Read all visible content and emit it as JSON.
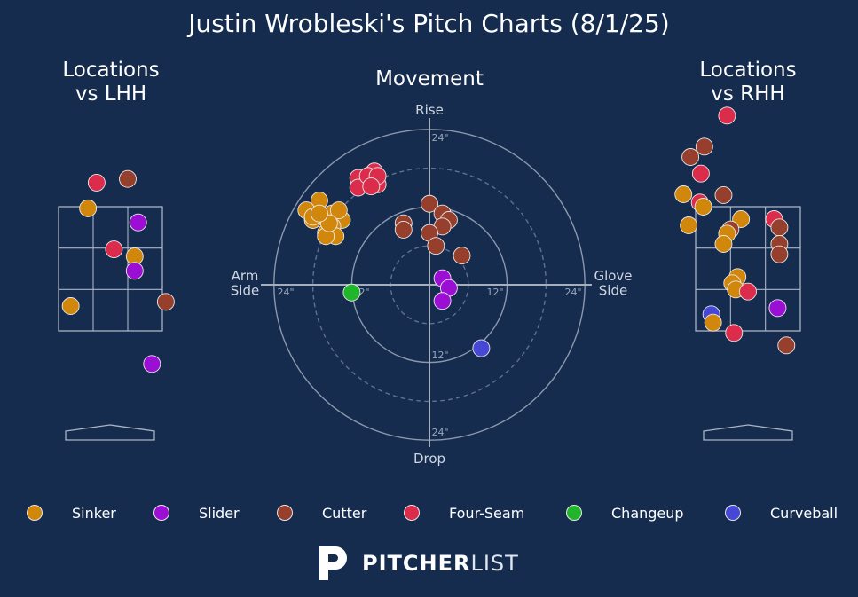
{
  "title": "Justin Wrobleski's Pitch Charts (8/1/25)",
  "panels": {
    "lhh": "Locations\nvs LHH",
    "movement": "Movement",
    "rhh": "Locations\nvs RHH"
  },
  "colors": {
    "background": "#152c4f",
    "Sinker": "#d1870b",
    "Slider": "#9b0fd4",
    "Cutter": "#963f2c",
    "Four-Seam": "#db2d4b",
    "Changeup": "#21b52c",
    "Curveball": "#4647d4"
  },
  "legend": [
    "Sinker",
    "Slider",
    "Cutter",
    "Four-Seam",
    "Changeup",
    "Curveball"
  ],
  "brand": {
    "bold": "PITCHER",
    "light": "LIST"
  },
  "chart_data": [
    {
      "type": "scatter",
      "name_key": "movement",
      "xlabel_left": "Arm\nSide",
      "xlabel_right": "Glove\nSide",
      "ylabel_top": "Rise",
      "ylabel_bottom": "Drop",
      "ring_labels": [
        "12\"",
        "24\""
      ],
      "units": "inches (x: arm side negative, glove side positive; y: rise positive)",
      "points": [
        {
          "pitch": "Sinker",
          "x": -17,
          "y": 13
        },
        {
          "pitch": "Sinker",
          "x": -18,
          "y": 10
        },
        {
          "pitch": "Sinker",
          "x": -19,
          "y": 11.5
        },
        {
          "pitch": "Sinker",
          "x": -16,
          "y": 10.5
        },
        {
          "pitch": "Sinker",
          "x": -15,
          "y": 11
        },
        {
          "pitch": "Sinker",
          "x": -13.5,
          "y": 10
        },
        {
          "pitch": "Sinker",
          "x": -14,
          "y": 11.5
        },
        {
          "pitch": "Sinker",
          "x": -16,
          "y": 8
        },
        {
          "pitch": "Sinker",
          "x": -15,
          "y": 9
        },
        {
          "pitch": "Sinker",
          "x": -14.5,
          "y": 7.5
        },
        {
          "pitch": "Sinker",
          "x": -16,
          "y": 7.5
        },
        {
          "pitch": "Sinker",
          "x": -18,
          "y": 10.5
        },
        {
          "pitch": "Sinker",
          "x": -15.5,
          "y": 9.5
        },
        {
          "pitch": "Sinker",
          "x": -17,
          "y": 11
        },
        {
          "pitch": "Four-Seam",
          "x": -11,
          "y": 16.5
        },
        {
          "pitch": "Four-Seam",
          "x": -8.5,
          "y": 17.5
        },
        {
          "pitch": "Four-Seam",
          "x": -9,
          "y": 16
        },
        {
          "pitch": "Four-Seam",
          "x": -8,
          "y": 15.5
        },
        {
          "pitch": "Four-Seam",
          "x": -11,
          "y": 15
        },
        {
          "pitch": "Four-Seam",
          "x": -9.5,
          "y": 16.8
        },
        {
          "pitch": "Four-Seam",
          "x": -8,
          "y": 16.8
        },
        {
          "pitch": "Four-Seam",
          "x": -9,
          "y": 15.2
        },
        {
          "pitch": "Cutter",
          "x": 0,
          "y": 12.5
        },
        {
          "pitch": "Cutter",
          "x": 2,
          "y": 11
        },
        {
          "pitch": "Cutter",
          "x": -4,
          "y": 9.5
        },
        {
          "pitch": "Cutter",
          "x": 3,
          "y": 10
        },
        {
          "pitch": "Cutter",
          "x": 2,
          "y": 9
        },
        {
          "pitch": "Cutter",
          "x": -4,
          "y": 8.5
        },
        {
          "pitch": "Cutter",
          "x": 0,
          "y": 8
        },
        {
          "pitch": "Cutter",
          "x": 1,
          "y": 6
        },
        {
          "pitch": "Cutter",
          "x": 5,
          "y": 4.5
        },
        {
          "pitch": "Slider",
          "x": 2,
          "y": 1
        },
        {
          "pitch": "Slider",
          "x": 3,
          "y": -0.5
        },
        {
          "pitch": "Slider",
          "x": 2,
          "y": -2.5
        },
        {
          "pitch": "Changeup",
          "x": -12,
          "y": -1.2
        },
        {
          "pitch": "Curveball",
          "x": 8,
          "y": -9.8
        }
      ]
    },
    {
      "type": "scatter",
      "name_key": "lhh",
      "units": "strike zone grid (x: 0 left edge to 3 right edge, y: 0 top to 3 bottom)",
      "points": [
        {
          "pitch": "Four-Seam",
          "x": 1.1,
          "y": -0.58
        },
        {
          "pitch": "Cutter",
          "x": 2,
          "y": -0.67
        },
        {
          "pitch": "Sinker",
          "x": 0.85,
          "y": 0.04
        },
        {
          "pitch": "Slider",
          "x": 2.3,
          "y": 0.38
        },
        {
          "pitch": "Four-Seam",
          "x": 1.6,
          "y": 1.03
        },
        {
          "pitch": "Sinker",
          "x": 2.2,
          "y": 1.2
        },
        {
          "pitch": "Slider",
          "x": 2.2,
          "y": 1.55
        },
        {
          "pitch": "Sinker",
          "x": 0.35,
          "y": 2.4
        },
        {
          "pitch": "Cutter",
          "x": 3.1,
          "y": 2.3
        },
        {
          "pitch": "Slider",
          "x": 2.7,
          "y": 3.8
        }
      ]
    },
    {
      "type": "scatter",
      "name_key": "rhh",
      "units": "strike zone grid (x: 0 left edge to 3 right edge, y: 0 top to 3 bottom)",
      "points": [
        {
          "pitch": "Four-Seam",
          "x": 0.9,
          "y": -2.2
        },
        {
          "pitch": "Cutter",
          "x": 0.25,
          "y": -1.45
        },
        {
          "pitch": "Cutter",
          "x": -0.15,
          "y": -1.2
        },
        {
          "pitch": "Four-Seam",
          "x": 0.15,
          "y": -0.8
        },
        {
          "pitch": "Sinker",
          "x": -0.35,
          "y": -0.3
        },
        {
          "pitch": "Cutter",
          "x": 0.8,
          "y": -0.28
        },
        {
          "pitch": "Four-Seam",
          "x": 0.12,
          "y": -0.1
        },
        {
          "pitch": "Sinker",
          "x": 0.22,
          "y": 0
        },
        {
          "pitch": "Sinker",
          "x": 1.3,
          "y": 0.3
        },
        {
          "pitch": "Sinker",
          "x": -0.2,
          "y": 0.45
        },
        {
          "pitch": "Cutter",
          "x": 1,
          "y": 0.55
        },
        {
          "pitch": "Sinker",
          "x": 0.9,
          "y": 0.65
        },
        {
          "pitch": "Sinker",
          "x": 0.8,
          "y": 0.9
        },
        {
          "pitch": "Four-Seam",
          "x": 2.25,
          "y": 0.3
        },
        {
          "pitch": "Cutter",
          "x": 2.4,
          "y": 0.5
        },
        {
          "pitch": "Cutter",
          "x": 2.4,
          "y": 0.9
        },
        {
          "pitch": "Cutter",
          "x": 2.4,
          "y": 1.15
        },
        {
          "pitch": "Sinker",
          "x": 1.2,
          "y": 1.7
        },
        {
          "pitch": "Sinker",
          "x": 1.05,
          "y": 1.85
        },
        {
          "pitch": "Sinker",
          "x": 1.15,
          "y": 2.0
        },
        {
          "pitch": "Four-Seam",
          "x": 1.5,
          "y": 2.05
        },
        {
          "pitch": "Slider",
          "x": 2.35,
          "y": 2.45
        },
        {
          "pitch": "Curveball",
          "x": 0.45,
          "y": 2.6
        },
        {
          "pitch": "Sinker",
          "x": 0.5,
          "y": 2.8
        },
        {
          "pitch": "Four-Seam",
          "x": 1.1,
          "y": 3.05
        },
        {
          "pitch": "Cutter",
          "x": 2.6,
          "y": 3.35
        }
      ]
    }
  ]
}
